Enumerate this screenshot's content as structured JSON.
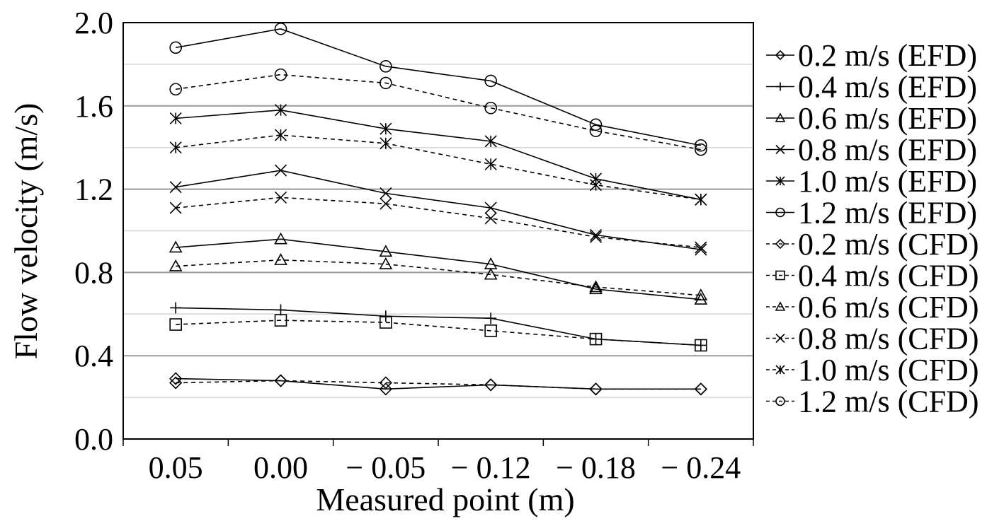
{
  "chart_data": {
    "type": "line",
    "categories": [
      "0.05",
      "0.00",
      "− 0.05",
      "− 0.12",
      "− 0.18",
      "− 0.24"
    ],
    "xlabel": "Measured point (m)",
    "ylabel": "Flow velocity (m/s)",
    "ylim": [
      0,
      2.0
    ],
    "yticks": [
      "0.0",
      "0.4",
      "0.8",
      "1.2",
      "1.6",
      "2.0"
    ],
    "grid": "horizontal",
    "legend_position": "right",
    "series": [
      {
        "name": "0.2 m/s (EFD)",
        "marker": "diamond",
        "style": "solid",
        "values": [
          0.29,
          0.28,
          0.24,
          0.26,
          0.24,
          0.24
        ]
      },
      {
        "name": "0.4 m/s (EFD)",
        "marker": "plus",
        "style": "solid",
        "values": [
          0.63,
          0.62,
          0.59,
          0.58,
          0.48,
          0.45
        ]
      },
      {
        "name": "0.6 m/s (EFD)",
        "marker": "triangle",
        "style": "solid",
        "values": [
          0.92,
          0.96,
          0.9,
          0.84,
          0.72,
          0.67
        ]
      },
      {
        "name": "0.8 m/s (EFD)",
        "marker": "x",
        "style": "solid",
        "values": [
          1.21,
          1.29,
          1.18,
          1.11,
          0.98,
          0.91
        ]
      },
      {
        "name": "1.0 m/s (EFD)",
        "marker": "asterisk",
        "style": "solid",
        "values": [
          1.54,
          1.58,
          1.49,
          1.43,
          1.25,
          1.15
        ]
      },
      {
        "name": "1.2 m/s (EFD)",
        "marker": "circle",
        "style": "solid",
        "values": [
          1.88,
          1.97,
          1.79,
          1.72,
          1.51,
          1.41
        ]
      },
      {
        "name": "0.2 m/s (CFD)",
        "marker": "diamond",
        "style": "dashed",
        "values": [
          0.27,
          0.28,
          0.27,
          0.26,
          0.24,
          0.24
        ]
      },
      {
        "name": "0.4 m/s (CFD)",
        "marker": "square",
        "style": "dashed",
        "values": [
          0.55,
          0.57,
          0.56,
          0.52,
          0.48,
          0.45
        ]
      },
      {
        "name": "0.6 m/s (CFD)",
        "marker": "triangle",
        "style": "dashed",
        "values": [
          0.83,
          0.86,
          0.84,
          0.79,
          0.73,
          0.69
        ]
      },
      {
        "name": "0.8 m/s (CFD)",
        "marker": "x",
        "style": "dashed",
        "values": [
          1.11,
          1.16,
          1.13,
          1.06,
          0.97,
          0.92
        ]
      },
      {
        "name": "1.0 m/s (CFD)",
        "marker": "asterisk",
        "style": "dashed",
        "values": [
          1.4,
          1.46,
          1.42,
          1.32,
          1.22,
          1.15
        ]
      },
      {
        "name": "1.2 m/s (CFD)",
        "marker": "circle",
        "style": "dashed",
        "values": [
          1.68,
          1.75,
          1.71,
          1.59,
          1.48,
          1.39
        ]
      }
    ]
  }
}
